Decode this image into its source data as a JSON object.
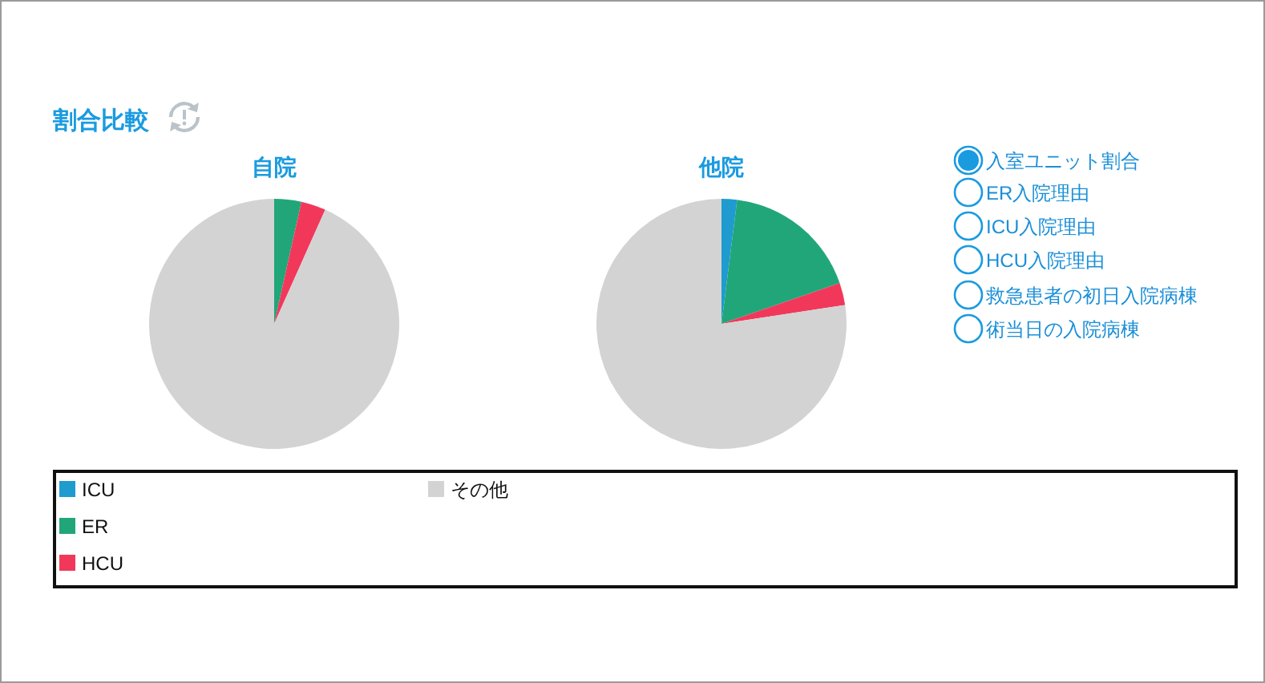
{
  "chart_data": [
    {
      "type": "other",
      "title": "割合比較",
      "annotations": [
        "入室ユニット割合",
        "ER入院理由",
        "ICU入院理由",
        "HCU入院理由",
        "救急患者の初日入院病棟",
        "術当日の入院病棟"
      ]
    },
    {
      "type": "pie",
      "title": "自院",
      "categories": [
        "ICU",
        "ER",
        "HCU",
        "その他"
      ],
      "values": [
        0,
        3.5,
        3.2,
        93.3
      ],
      "colors": [
        "#1f9bcf",
        "#21a67a",
        "#f2385a",
        "#d3d3d3"
      ],
      "legend": "bottom"
    },
    {
      "type": "pie",
      "title": "他院",
      "categories": [
        null,
        null,
        null,
        null
      ],
      "values": [
        2,
        17.7,
        2.9,
        77.4
      ],
      "colors": [
        "#1f9bcf",
        "#21a67a",
        "#f2385a",
        "#d3d3d3"
      ]
    }
  ]
}
